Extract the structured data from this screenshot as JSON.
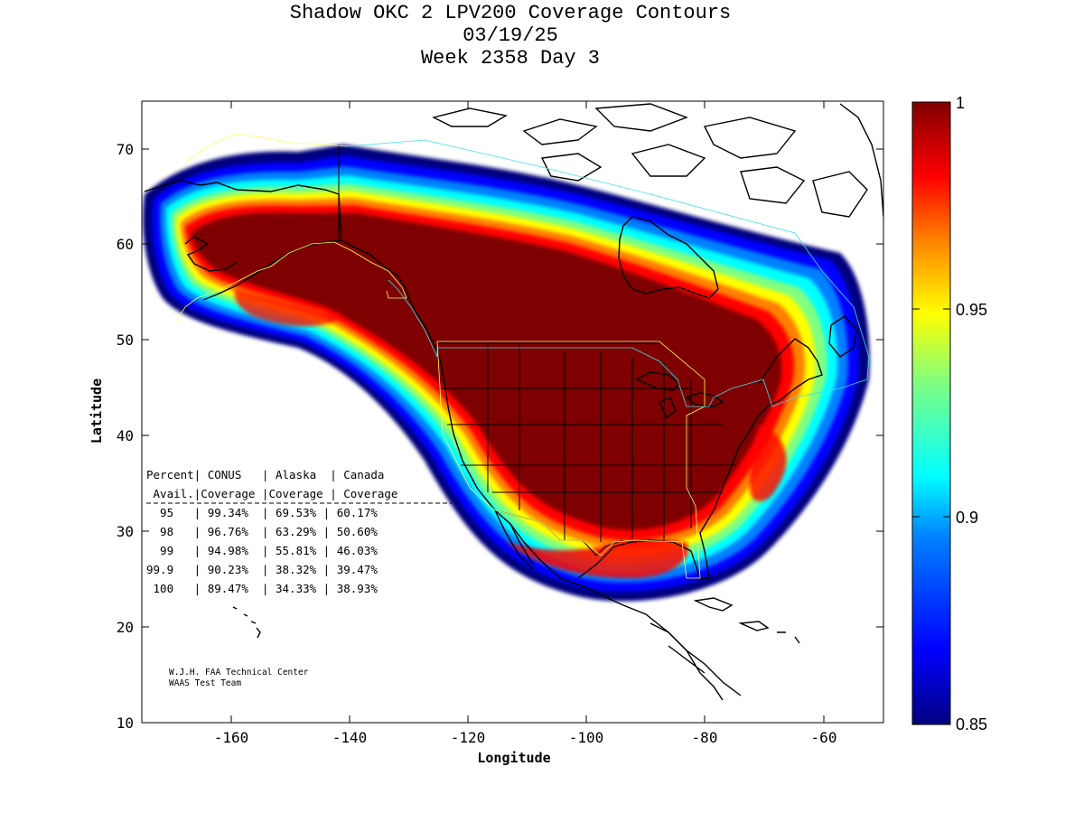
{
  "title": {
    "line1": "Shadow OKC 2 LPV200 Coverage Contours",
    "line2": "03/19/25",
    "line3": "Week 2358 Day 3"
  },
  "axes": {
    "xlabel": "Longitude",
    "ylabel": "Latitude",
    "x_ticks": [
      "-160",
      "-140",
      "-120",
      "-100",
      "-80",
      "-60"
    ],
    "y_ticks": [
      "70",
      "60",
      "50",
      "40",
      "30",
      "20",
      "10"
    ]
  },
  "colorbar": {
    "ticks": [
      "1",
      "0.95",
      "0.9",
      "0.85"
    ],
    "colors": [
      "#800000",
      "#ff0000",
      "#ff8000",
      "#ffff00",
      "#80ff80",
      "#00ffff",
      "#0080ff",
      "#0000ff",
      "#000080"
    ]
  },
  "table": {
    "header1": "Percent| CONUS   | Alaska  | Canada",
    "header2": " Avail.|Coverage |Coverage | Coverage",
    "rows": [
      "  95   | 99.34%  | 69.53% | 60.17%",
      "  98   | 96.76%  | 63.29% | 50.60%",
      "  99   | 94.98%  | 55.81% | 46.03%",
      "99.9   | 90.23%  | 38.32% | 39.47%",
      " 100   | 89.47%  | 34.33% | 38.93%"
    ]
  },
  "credit": {
    "line1": "W.J.H. FAA Technical Center",
    "line2": "WAAS Test Team"
  },
  "chart_data": {
    "type": "heatmap",
    "title": "Shadow OKC 2 LPV200 Coverage Contours",
    "subtitle": [
      "03/19/25",
      "Week 2358 Day 3"
    ],
    "xlabel": "Longitude",
    "ylabel": "Latitude",
    "xlim": [
      -175,
      -50
    ],
    "ylim": [
      10,
      75
    ],
    "color_range": [
      0.85,
      1
    ],
    "colormap": "jet",
    "coverage_table": {
      "columns": [
        "Percent Avail.",
        "CONUS Coverage",
        "Alaska Coverage",
        "Canada Coverage"
      ],
      "rows": [
        [
          "95",
          "99.34%",
          "69.53%",
          "60.17%"
        ],
        [
          "98",
          "96.76%",
          "63.29%",
          "50.60%"
        ],
        [
          "99",
          "94.98%",
          "55.81%",
          "46.03%"
        ],
        [
          "99.9",
          "90.23%",
          "38.32%",
          "39.47%"
        ],
        [
          "100",
          "89.47%",
          "34.33%",
          "38.93%"
        ]
      ]
    }
  }
}
